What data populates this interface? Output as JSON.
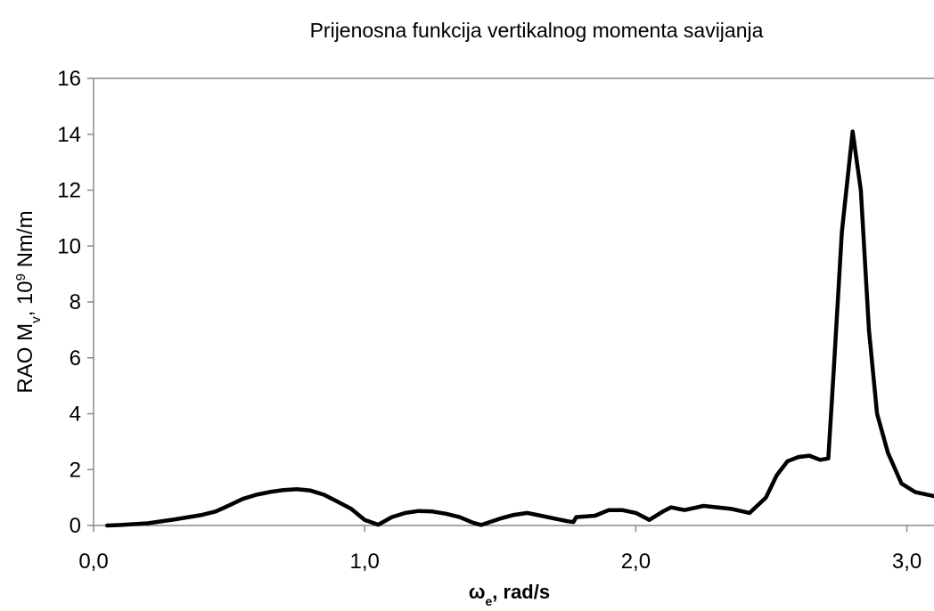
{
  "chart_data": {
    "type": "line",
    "title": "Prijenosna funkcija vertikalnog momenta savijanja",
    "xlabel": [
      "ω",
      "e",
      ", rad/s"
    ],
    "ylabel": [
      "RAO M",
      "v",
      ", 10",
      "9",
      " Nm/m"
    ],
    "xlim": [
      0,
      3.1
    ],
    "xticks": [
      {
        "value": 0,
        "label": "0,0"
      },
      {
        "value": 1,
        "label": "1,0"
      },
      {
        "value": 2,
        "label": "2,0"
      },
      {
        "value": 3,
        "label": "3,0"
      }
    ],
    "ylim": [
      0,
      16
    ],
    "yticks": [
      0,
      2,
      4,
      6,
      8,
      10,
      12,
      14,
      16
    ],
    "grid": false,
    "series": [
      {
        "color": "#000000",
        "x": [
          0.05,
          0.1,
          0.2,
          0.3,
          0.4,
          0.45,
          0.5,
          0.55,
          0.6,
          0.65,
          0.7,
          0.75,
          0.8,
          0.85,
          0.9,
          0.95,
          1.0,
          1.05,
          1.1,
          1.15,
          1.2,
          1.25,
          1.3,
          1.35,
          1.4,
          1.43,
          1.5,
          1.55,
          1.6,
          1.65,
          1.7,
          1.75,
          1.77,
          1.78,
          1.85,
          1.9,
          1.95,
          2.0,
          2.05,
          2.1,
          2.13,
          2.18,
          2.25,
          2.3,
          2.35,
          2.42,
          2.48,
          2.52,
          2.56,
          2.6,
          2.64,
          2.68,
          2.71,
          2.73,
          2.76,
          2.8,
          2.83,
          2.86,
          2.89,
          2.93,
          2.98,
          3.03,
          3.1
        ],
        "values": [
          0,
          0.02,
          0.08,
          0.22,
          0.38,
          0.5,
          0.72,
          0.95,
          1.1,
          1.2,
          1.27,
          1.3,
          1.25,
          1.1,
          0.85,
          0.6,
          0.2,
          0.03,
          0.3,
          0.45,
          0.52,
          0.5,
          0.42,
          0.3,
          0.1,
          0.02,
          0.25,
          0.38,
          0.45,
          0.35,
          0.25,
          0.15,
          0.12,
          0.3,
          0.35,
          0.55,
          0.55,
          0.45,
          0.2,
          0.5,
          0.65,
          0.55,
          0.7,
          0.65,
          0.6,
          0.45,
          1.0,
          1.8,
          2.3,
          2.45,
          2.5,
          2.35,
          2.4,
          5.5,
          10.5,
          14.1,
          12.0,
          7.0,
          4.0,
          2.6,
          1.5,
          1.2,
          1.05
        ]
      }
    ]
  }
}
